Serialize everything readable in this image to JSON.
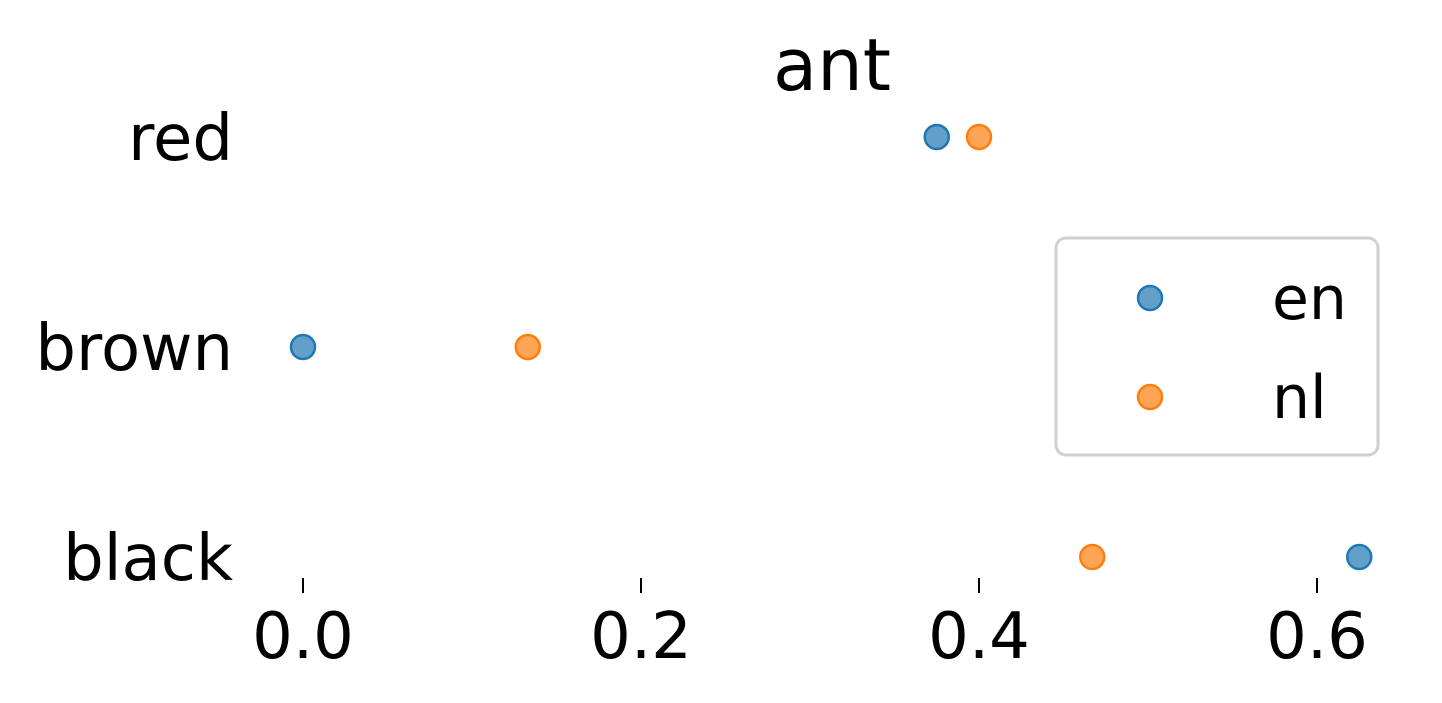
{
  "chart_data": {
    "type": "scatter",
    "title": "ant",
    "xlabel": "",
    "ylabel": "",
    "categories": [
      "red",
      "brown",
      "black"
    ],
    "xlim": [
      -0.03,
      0.65
    ],
    "xticks": [
      "0.0",
      "0.2",
      "0.4",
      "0.6"
    ],
    "xtick_values": [
      0.0,
      0.2,
      0.4,
      0.6
    ],
    "grid": false,
    "legend_position": "center-right",
    "series": [
      {
        "name": "en",
        "color": "#1f77b4",
        "values": [
          0.375,
          0.0,
          0.625
        ]
      },
      {
        "name": "nl",
        "color": "#ff7f0e",
        "values": [
          0.4,
          0.133,
          0.467
        ]
      }
    ]
  }
}
